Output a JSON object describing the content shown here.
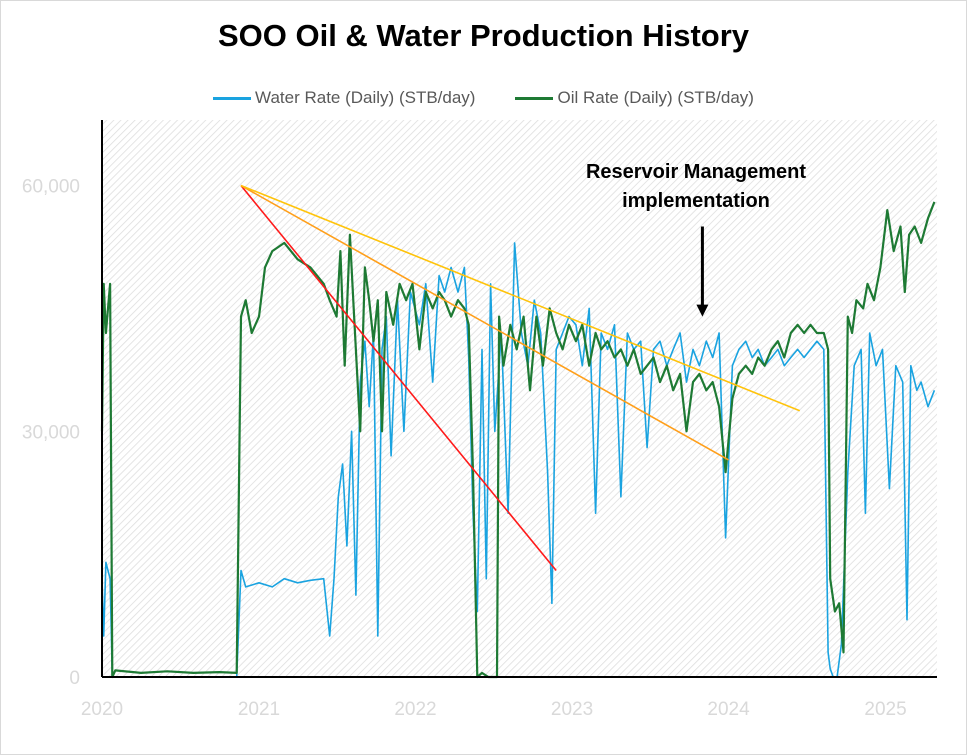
{
  "chart_data": {
    "type": "line",
    "title": "SOO Oil & Water Production History",
    "xlabel": "",
    "ylabel": "",
    "x_axis": {
      "type": "date",
      "range": [
        "2020-01-01",
        "2025-05-01"
      ],
      "tick_labels": [
        "2020",
        "2021",
        "2022",
        "2023",
        "2024",
        "2025"
      ]
    },
    "y_axis": {
      "range": [
        0,
        68000
      ],
      "tick_values": [
        0,
        30000,
        60000
      ],
      "tick_labels": [
        "0",
        "30,000",
        "60,000"
      ]
    },
    "grid": false,
    "legend": "top-center",
    "annotation": {
      "text_lines": [
        "Reservoir Management",
        "implementation"
      ],
      "arrow_date": "2023-11-01",
      "arrow_from": 55000,
      "arrow_to": 44000
    },
    "series": [
      {
        "name": "Water Rate (Daily) (STB/day)",
        "color": "#1aa3e0",
        "points": [
          [
            "2020-01-01",
            12000
          ],
          [
            "2020-01-05",
            5000
          ],
          [
            "2020-01-10",
            14000
          ],
          [
            "2020-01-20",
            12000
          ],
          [
            "2020-01-25",
            0
          ],
          [
            "2020-02-15",
            0
          ],
          [
            "2020-06-01",
            0
          ],
          [
            "2020-10-15",
            0
          ],
          [
            "2020-11-10",
            0
          ],
          [
            "2020-11-20",
            13000
          ],
          [
            "2020-12-01",
            11000
          ],
          [
            "2021-01-01",
            11500
          ],
          [
            "2021-02-01",
            11000
          ],
          [
            "2021-03-01",
            12000
          ],
          [
            "2021-04-01",
            11500
          ],
          [
            "2021-05-01",
            11800
          ],
          [
            "2021-06-01",
            12000
          ],
          [
            "2021-06-15",
            5000
          ],
          [
            "2021-06-25",
            12000
          ],
          [
            "2021-07-05",
            22000
          ],
          [
            "2021-07-15",
            26000
          ],
          [
            "2021-07-25",
            16000
          ],
          [
            "2021-08-05",
            30000
          ],
          [
            "2021-08-15",
            10000
          ],
          [
            "2021-08-25",
            36000
          ],
          [
            "2021-09-05",
            41000
          ],
          [
            "2021-09-15",
            33000
          ],
          [
            "2021-09-25",
            42000
          ],
          [
            "2021-10-05",
            5000
          ],
          [
            "2021-10-15",
            40000
          ],
          [
            "2021-10-25",
            44000
          ],
          [
            "2021-11-05",
            27000
          ],
          [
            "2021-11-20",
            46000
          ],
          [
            "2021-12-05",
            30000
          ],
          [
            "2021-12-20",
            47000
          ],
          [
            "2022-01-10",
            43000
          ],
          [
            "2022-01-25",
            48000
          ],
          [
            "2022-02-10",
            36000
          ],
          [
            "2022-02-25",
            49000
          ],
          [
            "2022-03-10",
            47000
          ],
          [
            "2022-03-25",
            50000
          ],
          [
            "2022-04-10",
            47000
          ],
          [
            "2022-04-25",
            50000
          ],
          [
            "2022-05-05",
            39000
          ],
          [
            "2022-05-15",
            20000
          ],
          [
            "2022-05-25",
            8000
          ],
          [
            "2022-06-05",
            40000
          ],
          [
            "2022-06-15",
            12000
          ],
          [
            "2022-06-25",
            48000
          ],
          [
            "2022-07-05",
            30000
          ],
          [
            "2022-07-20",
            42000
          ],
          [
            "2022-08-05",
            20000
          ],
          [
            "2022-08-20",
            53000
          ],
          [
            "2022-09-05",
            42000
          ],
          [
            "2022-09-20",
            38000
          ],
          [
            "2022-10-05",
            46000
          ],
          [
            "2022-10-20",
            42000
          ],
          [
            "2022-11-05",
            25000
          ],
          [
            "2022-11-15",
            9000
          ],
          [
            "2022-11-25",
            40000
          ],
          [
            "2022-12-10",
            42000
          ],
          [
            "2022-12-25",
            44000
          ],
          [
            "2023-01-10",
            43000
          ],
          [
            "2023-01-25",
            38000
          ],
          [
            "2023-02-10",
            45000
          ],
          [
            "2023-02-25",
            20000
          ],
          [
            "2023-03-10",
            42000
          ],
          [
            "2023-03-25",
            40000
          ],
          [
            "2023-04-10",
            43000
          ],
          [
            "2023-04-25",
            22000
          ],
          [
            "2023-05-10",
            42000
          ],
          [
            "2023-05-25",
            40000
          ],
          [
            "2023-06-10",
            41000
          ],
          [
            "2023-06-25",
            28000
          ],
          [
            "2023-07-10",
            40000
          ],
          [
            "2023-07-25",
            41000
          ],
          [
            "2023-08-10",
            38000
          ],
          [
            "2023-08-25",
            40000
          ],
          [
            "2023-09-10",
            42000
          ],
          [
            "2023-09-25",
            36000
          ],
          [
            "2023-10-10",
            40000
          ],
          [
            "2023-10-25",
            38000
          ],
          [
            "2023-11-10",
            41000
          ],
          [
            "2023-11-25",
            39000
          ],
          [
            "2023-12-10",
            42000
          ],
          [
            "2023-12-25",
            17000
          ],
          [
            "2024-01-10",
            38000
          ],
          [
            "2024-01-25",
            40000
          ],
          [
            "2024-02-10",
            41000
          ],
          [
            "2024-02-25",
            39000
          ],
          [
            "2024-03-10",
            40000
          ],
          [
            "2024-03-25",
            38000
          ],
          [
            "2024-04-10",
            39000
          ],
          [
            "2024-04-25",
            40000
          ],
          [
            "2024-05-10",
            38000
          ],
          [
            "2024-05-25",
            39000
          ],
          [
            "2024-06-10",
            40000
          ],
          [
            "2024-06-25",
            39000
          ],
          [
            "2024-07-10",
            40000
          ],
          [
            "2024-07-25",
            41000
          ],
          [
            "2024-08-10",
            40000
          ],
          [
            "2024-08-20",
            3000
          ],
          [
            "2024-08-25",
            1000
          ],
          [
            "2024-09-01",
            0
          ],
          [
            "2024-09-10",
            0
          ],
          [
            "2024-09-20",
            4000
          ],
          [
            "2024-10-05",
            25000
          ],
          [
            "2024-10-20",
            38000
          ],
          [
            "2024-11-05",
            40000
          ],
          [
            "2024-11-15",
            20000
          ],
          [
            "2024-11-25",
            42000
          ],
          [
            "2024-12-10",
            38000
          ],
          [
            "2024-12-25",
            40000
          ],
          [
            "2025-01-10",
            23000
          ],
          [
            "2025-01-25",
            38000
          ],
          [
            "2025-02-10",
            36000
          ],
          [
            "2025-02-20",
            7000
          ],
          [
            "2025-03-01",
            38000
          ],
          [
            "2025-03-15",
            35000
          ],
          [
            "2025-03-25",
            36000
          ],
          [
            "2025-04-10",
            33000
          ],
          [
            "2025-04-25",
            35000
          ]
        ]
      },
      {
        "name": "Oil Rate (Daily) (STB/day)",
        "color": "#1e7a34",
        "points": [
          [
            "2020-01-01",
            30000
          ],
          [
            "2020-01-05",
            48000
          ],
          [
            "2020-01-10",
            42000
          ],
          [
            "2020-01-20",
            48000
          ],
          [
            "2020-01-25",
            0
          ],
          [
            "2020-02-01",
            800
          ],
          [
            "2020-04-01",
            500
          ],
          [
            "2020-06-01",
            700
          ],
          [
            "2020-08-01",
            500
          ],
          [
            "2020-10-01",
            600
          ],
          [
            "2020-11-10",
            500
          ],
          [
            "2020-11-20",
            44000
          ],
          [
            "2020-12-01",
            46000
          ],
          [
            "2020-12-15",
            42000
          ],
          [
            "2021-01-01",
            44000
          ],
          [
            "2021-01-15",
            50000
          ],
          [
            "2021-02-01",
            52000
          ],
          [
            "2021-03-01",
            53000
          ],
          [
            "2021-04-01",
            51000
          ],
          [
            "2021-05-01",
            50000
          ],
          [
            "2021-06-01",
            48000
          ],
          [
            "2021-06-15",
            46000
          ],
          [
            "2021-07-01",
            44000
          ],
          [
            "2021-07-10",
            52000
          ],
          [
            "2021-07-20",
            38000
          ],
          [
            "2021-08-01",
            54000
          ],
          [
            "2021-08-10",
            45000
          ],
          [
            "2021-08-25",
            30000
          ],
          [
            "2021-09-05",
            50000
          ],
          [
            "2021-09-15",
            46000
          ],
          [
            "2021-09-25",
            41000
          ],
          [
            "2021-10-05",
            46000
          ],
          [
            "2021-10-15",
            30000
          ],
          [
            "2021-10-25",
            47000
          ],
          [
            "2021-11-10",
            43000
          ],
          [
            "2021-11-25",
            48000
          ],
          [
            "2021-12-10",
            46000
          ],
          [
            "2021-12-25",
            48000
          ],
          [
            "2022-01-10",
            40000
          ],
          [
            "2022-01-25",
            47000
          ],
          [
            "2022-02-10",
            45000
          ],
          [
            "2022-02-25",
            47000
          ],
          [
            "2022-03-10",
            46000
          ],
          [
            "2022-03-25",
            44000
          ],
          [
            "2022-04-10",
            46000
          ],
          [
            "2022-04-25",
            45000
          ],
          [
            "2022-05-05",
            43000
          ],
          [
            "2022-05-15",
            25000
          ],
          [
            "2022-05-25",
            0
          ],
          [
            "2022-06-05",
            500
          ],
          [
            "2022-06-20",
            0
          ],
          [
            "2022-07-10",
            0
          ],
          [
            "2022-07-15",
            44000
          ],
          [
            "2022-07-25",
            38000
          ],
          [
            "2022-08-10",
            43000
          ],
          [
            "2022-08-25",
            40000
          ],
          [
            "2022-09-10",
            44000
          ],
          [
            "2022-09-25",
            35000
          ],
          [
            "2022-10-10",
            44000
          ],
          [
            "2022-10-25",
            38000
          ],
          [
            "2022-11-10",
            45000
          ],
          [
            "2022-11-25",
            42000
          ],
          [
            "2022-12-10",
            40000
          ],
          [
            "2022-12-25",
            43000
          ],
          [
            "2023-01-10",
            41000
          ],
          [
            "2023-01-25",
            43000
          ],
          [
            "2023-02-10",
            38000
          ],
          [
            "2023-02-25",
            42000
          ],
          [
            "2023-03-10",
            40000
          ],
          [
            "2023-03-25",
            41000
          ],
          [
            "2023-04-10",
            39000
          ],
          [
            "2023-04-25",
            40000
          ],
          [
            "2023-05-10",
            38000
          ],
          [
            "2023-05-25",
            40000
          ],
          [
            "2023-06-10",
            37000
          ],
          [
            "2023-06-25",
            38000
          ],
          [
            "2023-07-10",
            39000
          ],
          [
            "2023-07-25",
            36000
          ],
          [
            "2023-08-10",
            38000
          ],
          [
            "2023-08-25",
            35000
          ],
          [
            "2023-09-10",
            37000
          ],
          [
            "2023-09-25",
            30000
          ],
          [
            "2023-10-10",
            36000
          ],
          [
            "2023-10-25",
            37000
          ],
          [
            "2023-11-10",
            35000
          ],
          [
            "2023-11-25",
            36000
          ],
          [
            "2023-12-10",
            33000
          ],
          [
            "2023-12-25",
            25000
          ],
          [
            "2024-01-10",
            34000
          ],
          [
            "2024-01-25",
            37000
          ],
          [
            "2024-02-10",
            38000
          ],
          [
            "2024-02-25",
            37000
          ],
          [
            "2024-03-10",
            39000
          ],
          [
            "2024-03-25",
            38000
          ],
          [
            "2024-04-10",
            40000
          ],
          [
            "2024-04-25",
            41000
          ],
          [
            "2024-05-10",
            39000
          ],
          [
            "2024-05-25",
            42000
          ],
          [
            "2024-06-10",
            43000
          ],
          [
            "2024-06-25",
            42000
          ],
          [
            "2024-07-10",
            43000
          ],
          [
            "2024-07-25",
            42000
          ],
          [
            "2024-08-10",
            42000
          ],
          [
            "2024-08-20",
            40000
          ],
          [
            "2024-08-25",
            12000
          ],
          [
            "2024-09-05",
            8000
          ],
          [
            "2024-09-15",
            9000
          ],
          [
            "2024-09-25",
            3000
          ],
          [
            "2024-10-05",
            44000
          ],
          [
            "2024-10-15",
            42000
          ],
          [
            "2024-10-25",
            46000
          ],
          [
            "2024-11-10",
            45000
          ],
          [
            "2024-11-20",
            48000
          ],
          [
            "2024-12-05",
            46000
          ],
          [
            "2024-12-20",
            50000
          ],
          [
            "2025-01-05",
            57000
          ],
          [
            "2025-01-20",
            52000
          ],
          [
            "2025-02-05",
            55000
          ],
          [
            "2025-02-15",
            47000
          ],
          [
            "2025-02-25",
            54000
          ],
          [
            "2025-03-10",
            55000
          ],
          [
            "2025-03-25",
            53000
          ],
          [
            "2025-04-10",
            56000
          ],
          [
            "2025-04-25",
            58000
          ]
        ]
      }
    ],
    "trend_lines": [
      {
        "color": "#ff1a1a",
        "from": [
          "2020-11-20",
          60000
        ],
        "to": [
          "2022-11-25",
          13000
        ]
      },
      {
        "color": "#ff9f1a",
        "from": [
          "2020-11-20",
          60000
        ],
        "to": [
          "2024-01-01",
          26500
        ]
      },
      {
        "color": "#ffc30a",
        "from": [
          "2020-11-20",
          60000
        ],
        "to": [
          "2024-06-15",
          32500
        ]
      }
    ]
  }
}
